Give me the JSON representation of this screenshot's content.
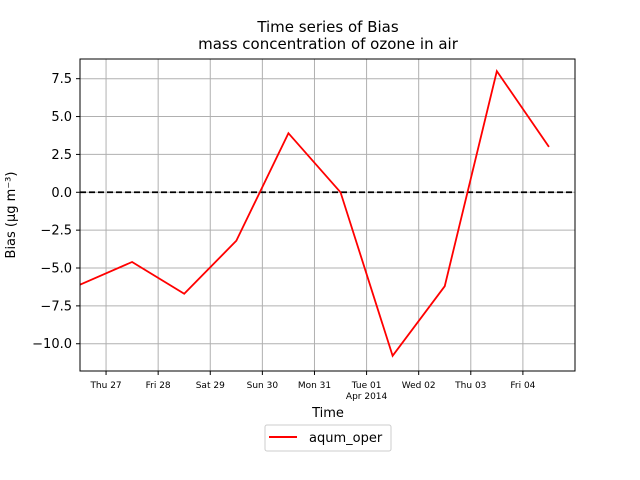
{
  "chart_data": {
    "type": "line",
    "title": "Time series of Bias",
    "subtitle": "mass concentration of ozone in air",
    "xlabel": "Time",
    "ylabel": "Bias (µg m⁻³)",
    "x_tick_labels": [
      "Thu 27",
      "Fri 28",
      "Sat 29",
      "Sun 30",
      "Mon 31",
      "Tue 01",
      "Wed 02",
      "Thu 03",
      "Fri 04"
    ],
    "x_tick_sublabel": {
      "tick": "Tue 01",
      "text": "Apr 2014"
    },
    "xlim": [
      "2014-03-26T12:00",
      "2014-04-05T00:00"
    ],
    "ylim": [
      -11.8,
      8.8
    ],
    "y_ticks": [
      -10.0,
      -7.5,
      -5.0,
      -2.5,
      0.0,
      2.5,
      5.0,
      7.5
    ],
    "y_tick_labels": [
      "−10.0",
      "−7.5",
      "−5.0",
      "−2.5",
      "0.0",
      "2.5",
      "5.0",
      "7.5"
    ],
    "grid": true,
    "reference_line": {
      "y": 0,
      "style": "dashed",
      "color": "#000000"
    },
    "legend_position": "below-center",
    "series": [
      {
        "name": "aqum_oper",
        "color": "#ff0000",
        "x": [
          "2014-03-26T12:00",
          "2014-03-27T12:00",
          "2014-03-28T12:00",
          "2014-03-29T12:00",
          "2014-03-30T12:00",
          "2014-03-31T12:00",
          "2014-04-01T12:00",
          "2014-04-02T12:00",
          "2014-04-03T12:00",
          "2014-04-04T12:00"
        ],
        "values": [
          -6.1,
          -4.6,
          -6.7,
          -3.2,
          3.9,
          0.0,
          -10.8,
          -6.2,
          8.0,
          3.0
        ]
      }
    ]
  }
}
